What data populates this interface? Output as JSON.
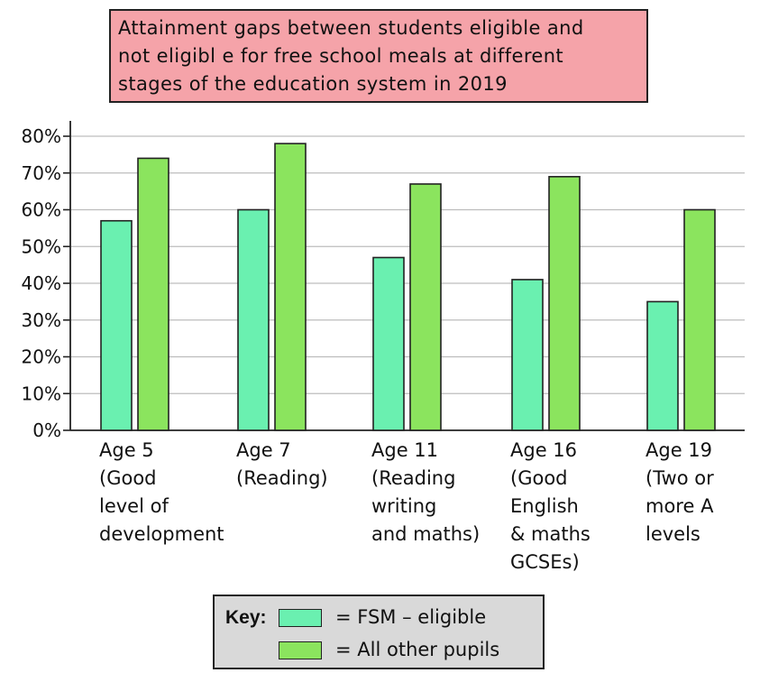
{
  "chart_data": {
    "type": "bar",
    "title_lines": [
      "Attainment gaps between students eligible and",
      "not eligibl e for free school meals at different",
      "stages of the education system in 2019"
    ],
    "categories": [
      [
        "Age 5",
        "(Good",
        "level of",
        "development"
      ],
      [
        "Age 7",
        "(Reading)"
      ],
      [
        "Age 11",
        "(Reading",
        "writing",
        "and maths)"
      ],
      [
        "Age 16",
        "(Good",
        "English",
        "& maths",
        "GCSEs)"
      ],
      [
        "Age 19",
        "(Two or",
        "more A",
        "levels"
      ]
    ],
    "series": [
      {
        "name": "FSM – eligible",
        "values": [
          57,
          60,
          47,
          41,
          35
        ],
        "color": "#6af0b0"
      },
      {
        "name": "All other pupils",
        "values": [
          74,
          78,
          67,
          69,
          60
        ],
        "color": "#8be45e"
      }
    ],
    "y_ticks": [
      "0%",
      "10%",
      "20%",
      "30%",
      "40%",
      "50%",
      "60%",
      "70%",
      "80%"
    ],
    "ylim": [
      0,
      80
    ],
    "grid": true,
    "legend_placement": "bottom"
  },
  "legend": {
    "title": "Key:",
    "eq1": "= FSM – eligible",
    "eq2": "= All other pupils"
  },
  "colors": {
    "title_bg": "#f5a3a9",
    "key_bg": "#d9d9d9",
    "grid": "#bdbdbd"
  }
}
